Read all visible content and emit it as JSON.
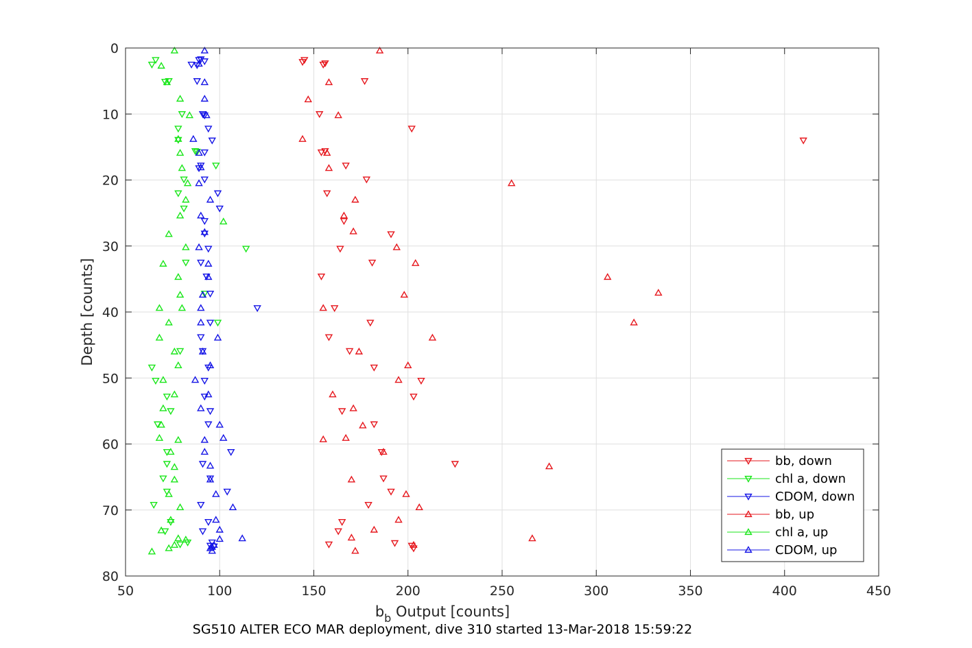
{
  "chart_data": {
    "type": "scatter",
    "title": "",
    "caption": "SG510 ALTER ECO MAR deployment, dive 310 started 13-Mar-2018 15:59:22",
    "xlabel_main": "b",
    "xlabel_sub": "b",
    "xlabel_rest": " Output [counts]",
    "ylabel": "Depth [counts]",
    "xlim": [
      50,
      450
    ],
    "ylim": [
      0,
      80
    ],
    "y_reversed": true,
    "xticks": [
      50,
      100,
      150,
      200,
      250,
      300,
      350,
      400,
      450
    ],
    "yticks": [
      0,
      10,
      20,
      30,
      40,
      50,
      60,
      70,
      80
    ],
    "grid": true,
    "legend_position": "bottom-right",
    "series": [
      {
        "name": "bb, down",
        "color": "#e6161c",
        "marker": "triangle-down",
        "points": [
          [
            145,
            1.8
          ],
          [
            144,
            2.1
          ],
          [
            155,
            2.5
          ],
          [
            156,
            2.3
          ],
          [
            177,
            5
          ],
          [
            153,
            10
          ],
          [
            202,
            12.2
          ],
          [
            410,
            14
          ],
          [
            154,
            15.8
          ],
          [
            156,
            15.6
          ],
          [
            167,
            17.8
          ],
          [
            178,
            19.9
          ],
          [
            157,
            22
          ],
          [
            166,
            26.2
          ],
          [
            191,
            28.2
          ],
          [
            164,
            30.4
          ],
          [
            181,
            32.5
          ],
          [
            154,
            34.6
          ],
          [
            161,
            39.4
          ],
          [
            180,
            41.6
          ],
          [
            158,
            43.8
          ],
          [
            169,
            45.9
          ],
          [
            182,
            48.4
          ],
          [
            207,
            50.4
          ],
          [
            203,
            52.8
          ],
          [
            165,
            55
          ],
          [
            182,
            57
          ],
          [
            186,
            61.2
          ],
          [
            225,
            63
          ],
          [
            187,
            65.2
          ],
          [
            191,
            67.2
          ],
          [
            179,
            69.2
          ],
          [
            165,
            71.8
          ],
          [
            163,
            73.2
          ],
          [
            193,
            75
          ],
          [
            202,
            75.4
          ],
          [
            203,
            75.8
          ],
          [
            158,
            75.2
          ]
        ]
      },
      {
        "name": "chl a, down",
        "color": "#19e619",
        "marker": "triangle-down",
        "points": [
          [
            66,
            1.8
          ],
          [
            64,
            2.5
          ],
          [
            73,
            5
          ],
          [
            71,
            5.1
          ],
          [
            80,
            10
          ],
          [
            78,
            12.2
          ],
          [
            78,
            13.9
          ],
          [
            87,
            15.6
          ],
          [
            88,
            15.7
          ],
          [
            98,
            17.8
          ],
          [
            81,
            19.9
          ],
          [
            78,
            22
          ],
          [
            81,
            24.3
          ],
          [
            114,
            30.4
          ],
          [
            82,
            32.5
          ],
          [
            92,
            37.2
          ],
          [
            99,
            41.6
          ],
          [
            79,
            45.9
          ],
          [
            64,
            48.4
          ],
          [
            66,
            50.4
          ],
          [
            72,
            52.8
          ],
          [
            74,
            55
          ],
          [
            67,
            57
          ],
          [
            72,
            61.2
          ],
          [
            72,
            63
          ],
          [
            70,
            65.2
          ],
          [
            72,
            67.2
          ],
          [
            65,
            69.2
          ],
          [
            74,
            71.8
          ],
          [
            71,
            73.2
          ],
          [
            83,
            74.9
          ],
          [
            79,
            75.2
          ]
        ]
      },
      {
        "name": "CDOM, down",
        "color": "#1414e6",
        "marker": "triangle-down",
        "points": [
          [
            89,
            1.8
          ],
          [
            90,
            1.7
          ],
          [
            92,
            2
          ],
          [
            85,
            2.5
          ],
          [
            88,
            2.6
          ],
          [
            88,
            5
          ],
          [
            91,
            10
          ],
          [
            92,
            10.2
          ],
          [
            94,
            12.2
          ],
          [
            96,
            14
          ],
          [
            92,
            15.8
          ],
          [
            90,
            17.8
          ],
          [
            89,
            18.2
          ],
          [
            92,
            19.9
          ],
          [
            99,
            22
          ],
          [
            100,
            24.3
          ],
          [
            92,
            26.2
          ],
          [
            92,
            28.1
          ],
          [
            94,
            30.4
          ],
          [
            90,
            32.5
          ],
          [
            93,
            34.6
          ],
          [
            95,
            37.2
          ],
          [
            120,
            39.4
          ],
          [
            95,
            41.6
          ],
          [
            90,
            43.8
          ],
          [
            91,
            45.9
          ],
          [
            94,
            48.4
          ],
          [
            92,
            50.4
          ],
          [
            92,
            52.8
          ],
          [
            95,
            55
          ],
          [
            94,
            57
          ],
          [
            106,
            61.2
          ],
          [
            91,
            63
          ],
          [
            95,
            65.2
          ],
          [
            104,
            67.2
          ],
          [
            90,
            69.2
          ],
          [
            94,
            71.8
          ],
          [
            91,
            73.2
          ],
          [
            96,
            74.9
          ],
          [
            95,
            75.4
          ],
          [
            97,
            75.5
          ]
        ]
      },
      {
        "name": "bb, up",
        "color": "#e6161c",
        "marker": "triangle-up",
        "points": [
          [
            185,
            0.4
          ],
          [
            158,
            5.2
          ],
          [
            147,
            7.8
          ],
          [
            163,
            10.2
          ],
          [
            144,
            13.8
          ],
          [
            157,
            15.9
          ],
          [
            158,
            18.2
          ],
          [
            255,
            20.5
          ],
          [
            172,
            23
          ],
          [
            166,
            25.4
          ],
          [
            171,
            27.8
          ],
          [
            194,
            30.2
          ],
          [
            204,
            32.6
          ],
          [
            306,
            34.7
          ],
          [
            198,
            37.4
          ],
          [
            333,
            37.1
          ],
          [
            155,
            39.4
          ],
          [
            320,
            41.6
          ],
          [
            213,
            43.9
          ],
          [
            174,
            46
          ],
          [
            200,
            48.1
          ],
          [
            195,
            50.3
          ],
          [
            160,
            52.5
          ],
          [
            171,
            54.6
          ],
          [
            176,
            57.2
          ],
          [
            155,
            59.3
          ],
          [
            167,
            59.1
          ],
          [
            187,
            61.2
          ],
          [
            275,
            63.4
          ],
          [
            170,
            65.4
          ],
          [
            199,
            67.6
          ],
          [
            206,
            69.6
          ],
          [
            195,
            71.5
          ],
          [
            182,
            73
          ],
          [
            170,
            74.2
          ],
          [
            266,
            74.3
          ],
          [
            203,
            75.3
          ],
          [
            172,
            76.2
          ]
        ]
      },
      {
        "name": "chl a, up",
        "color": "#19e619",
        "marker": "triangle-up",
        "points": [
          [
            76,
            0.4
          ],
          [
            69,
            2.7
          ],
          [
            72,
            5.2
          ],
          [
            79,
            7.7
          ],
          [
            84,
            10.2
          ],
          [
            78,
            13.8
          ],
          [
            79,
            15.9
          ],
          [
            80,
            18.2
          ],
          [
            83,
            20.5
          ],
          [
            82,
            23
          ],
          [
            79,
            25.4
          ],
          [
            102,
            26.3
          ],
          [
            73,
            28.2
          ],
          [
            82,
            30.2
          ],
          [
            70,
            32.7
          ],
          [
            78,
            34.7
          ],
          [
            79,
            37.4
          ],
          [
            68,
            39.4
          ],
          [
            80,
            39.4
          ],
          [
            73,
            41.6
          ],
          [
            68,
            43.9
          ],
          [
            76,
            46
          ],
          [
            78,
            48.1
          ],
          [
            70,
            50.3
          ],
          [
            76,
            52.5
          ],
          [
            70,
            54.6
          ],
          [
            69,
            57.1
          ],
          [
            78,
            59.4
          ],
          [
            68,
            59.1
          ],
          [
            74,
            61.2
          ],
          [
            76,
            63.5
          ],
          [
            76,
            65.4
          ],
          [
            73,
            67.6
          ],
          [
            79,
            69.6
          ],
          [
            74,
            71.5
          ],
          [
            69,
            73.1
          ],
          [
            78,
            74.3
          ],
          [
            82,
            74.5
          ],
          [
            73,
            75.8
          ],
          [
            76,
            75.3
          ],
          [
            64,
            76.3
          ]
        ]
      },
      {
        "name": "CDOM, up",
        "color": "#1414e6",
        "marker": "triangle-up",
        "points": [
          [
            92,
            0.4
          ],
          [
            89,
            2.4
          ],
          [
            92,
            5.2
          ],
          [
            92,
            7.7
          ],
          [
            93,
            10.2
          ],
          [
            86,
            13.8
          ],
          [
            89,
            15.9
          ],
          [
            90,
            18.1
          ],
          [
            89,
            20.5
          ],
          [
            95,
            23
          ],
          [
            90,
            25.4
          ],
          [
            92,
            27.9
          ],
          [
            89,
            30.2
          ],
          [
            94,
            32.7
          ],
          [
            94,
            34.7
          ],
          [
            91,
            37.4
          ],
          [
            90,
            39.4
          ],
          [
            90,
            41.6
          ],
          [
            99,
            43.9
          ],
          [
            91,
            46
          ],
          [
            95,
            48.1
          ],
          [
            87,
            50.3
          ],
          [
            94,
            52.5
          ],
          [
            90,
            54.6
          ],
          [
            100,
            57.1
          ],
          [
            102,
            59.1
          ],
          [
            92,
            59.4
          ],
          [
            92,
            61.2
          ],
          [
            95,
            63.3
          ],
          [
            95,
            65.4
          ],
          [
            98,
            67.6
          ],
          [
            107,
            69.6
          ],
          [
            98,
            71.5
          ],
          [
            100,
            73
          ],
          [
            100,
            74.4
          ],
          [
            112,
            74.3
          ],
          [
            97,
            75.3
          ],
          [
            96,
            75.6
          ],
          [
            95,
            75.8
          ],
          [
            96,
            76.2
          ]
        ]
      }
    ]
  }
}
